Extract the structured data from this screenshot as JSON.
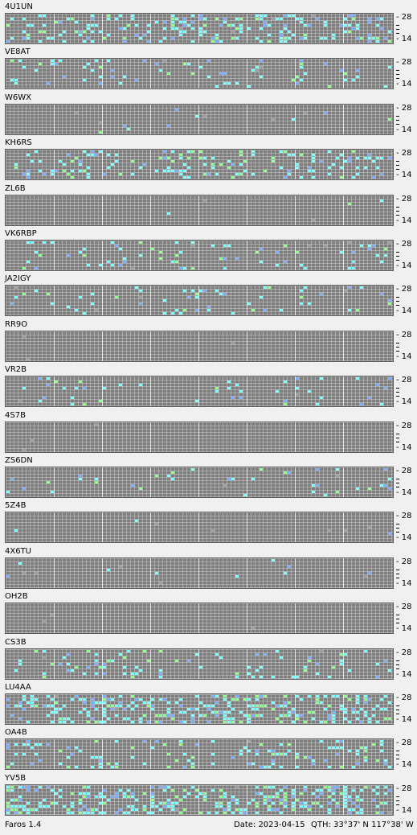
{
  "stations": [
    {
      "name": "4U1UN"
    },
    {
      "name": "VE8AT"
    },
    {
      "name": "W6WX"
    },
    {
      "name": "KH6RS"
    },
    {
      "name": "ZL6B"
    },
    {
      "name": "VK6RBP"
    },
    {
      "name": "JA2IGY"
    },
    {
      "name": "RR9O"
    },
    {
      "name": "VR2B"
    },
    {
      "name": "4S7B"
    },
    {
      "name": "ZS6DN"
    },
    {
      "name": "5Z4B"
    },
    {
      "name": "4X6TU"
    },
    {
      "name": "OH2B"
    },
    {
      "name": "CS3B"
    },
    {
      "name": "LU4AA"
    },
    {
      "name": "OA4B"
    },
    {
      "name": "YV5B"
    }
  ],
  "scale": {
    "top_label": "28",
    "bottom_label": "14"
  },
  "colors": {
    "cyan": "#80ffff",
    "blue": "#7fb0ff",
    "green": "#90ff90",
    "grey": "#a0a0a0",
    "background": "#7e7e7e"
  },
  "footer": {
    "app": "Faros 1.4",
    "date": "Date: 2023-04-15",
    "qth": "QTH: 33°37' N  117°38' W"
  }
}
